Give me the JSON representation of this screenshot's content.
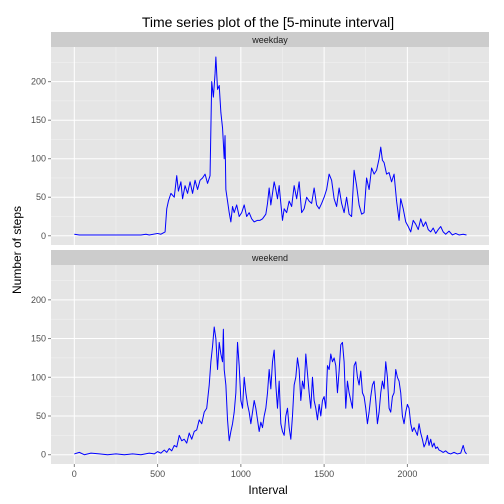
{
  "chart_data": {
    "type": "line",
    "title": "Time series plot of the [5-minute interval]",
    "xlabel": "Interval",
    "ylabel": "Number of steps",
    "xlim": [
      -140,
      2490
    ],
    "ylim": [
      -12,
      245
    ],
    "x_ticks": [
      0,
      500,
      1000,
      1500,
      2000
    ],
    "y_ticks": [
      0,
      50,
      100,
      150,
      200
    ],
    "grid": true,
    "line_color": "#0000ff",
    "panel_background": "#e5e5e5",
    "strip_background": "#cccccc",
    "panels": [
      {
        "label": "weekday",
        "points": [
          [
            0,
            2
          ],
          [
            30,
            1
          ],
          [
            60,
            1
          ],
          [
            100,
            1
          ],
          [
            140,
            1
          ],
          [
            200,
            1
          ],
          [
            300,
            1
          ],
          [
            400,
            1
          ],
          [
            430,
            2
          ],
          [
            450,
            1
          ],
          [
            500,
            3
          ],
          [
            520,
            2
          ],
          [
            545,
            5
          ],
          [
            555,
            35
          ],
          [
            565,
            45
          ],
          [
            580,
            55
          ],
          [
            600,
            50
          ],
          [
            615,
            78
          ],
          [
            625,
            58
          ],
          [
            640,
            70
          ],
          [
            650,
            48
          ],
          [
            665,
            65
          ],
          [
            680,
            55
          ],
          [
            695,
            70
          ],
          [
            710,
            55
          ],
          [
            725,
            72
          ],
          [
            740,
            60
          ],
          [
            755,
            72
          ],
          [
            770,
            75
          ],
          [
            785,
            80
          ],
          [
            800,
            68
          ],
          [
            815,
            78
          ],
          [
            825,
            200
          ],
          [
            835,
            180
          ],
          [
            845,
            210
          ],
          [
            850,
            232
          ],
          [
            860,
            190
          ],
          [
            870,
            195
          ],
          [
            880,
            160
          ],
          [
            890,
            140
          ],
          [
            900,
            100
          ],
          [
            905,
            130
          ],
          [
            910,
            60
          ],
          [
            920,
            45
          ],
          [
            930,
            30
          ],
          [
            940,
            18
          ],
          [
            950,
            38
          ],
          [
            960,
            30
          ],
          [
            975,
            40
          ],
          [
            990,
            25
          ],
          [
            1005,
            30
          ],
          [
            1020,
            40
          ],
          [
            1035,
            25
          ],
          [
            1050,
            30
          ],
          [
            1065,
            22
          ],
          [
            1080,
            18
          ],
          [
            1100,
            20
          ],
          [
            1115,
            20
          ],
          [
            1130,
            22
          ],
          [
            1150,
            28
          ],
          [
            1160,
            42
          ],
          [
            1170,
            62
          ],
          [
            1180,
            40
          ],
          [
            1190,
            55
          ],
          [
            1200,
            70
          ],
          [
            1210,
            60
          ],
          [
            1220,
            48
          ],
          [
            1230,
            65
          ],
          [
            1240,
            42
          ],
          [
            1250,
            20
          ],
          [
            1260,
            35
          ],
          [
            1275,
            30
          ],
          [
            1290,
            45
          ],
          [
            1305,
            38
          ],
          [
            1320,
            65
          ],
          [
            1335,
            48
          ],
          [
            1350,
            70
          ],
          [
            1365,
            30
          ],
          [
            1380,
            35
          ],
          [
            1395,
            50
          ],
          [
            1410,
            45
          ],
          [
            1425,
            42
          ],
          [
            1440,
            62
          ],
          [
            1455,
            40
          ],
          [
            1470,
            35
          ],
          [
            1485,
            42
          ],
          [
            1500,
            50
          ],
          [
            1515,
            60
          ],
          [
            1530,
            80
          ],
          [
            1545,
            72
          ],
          [
            1560,
            48
          ],
          [
            1575,
            38
          ],
          [
            1590,
            62
          ],
          [
            1605,
            42
          ],
          [
            1620,
            30
          ],
          [
            1635,
            50
          ],
          [
            1650,
            28
          ],
          [
            1665,
            25
          ],
          [
            1680,
            85
          ],
          [
            1695,
            65
          ],
          [
            1710,
            40
          ],
          [
            1725,
            28
          ],
          [
            1740,
            30
          ],
          [
            1755,
            75
          ],
          [
            1770,
            60
          ],
          [
            1785,
            88
          ],
          [
            1800,
            80
          ],
          [
            1815,
            85
          ],
          [
            1830,
            100
          ],
          [
            1840,
            115
          ],
          [
            1850,
            98
          ],
          [
            1860,
            95
          ],
          [
            1875,
            80
          ],
          [
            1890,
            82
          ],
          [
            1905,
            70
          ],
          [
            1920,
            80
          ],
          [
            1935,
            45
          ],
          [
            1950,
            20
          ],
          [
            1960,
            48
          ],
          [
            1975,
            35
          ],
          [
            1990,
            18
          ],
          [
            2005,
            12
          ],
          [
            2020,
            5
          ],
          [
            2035,
            20
          ],
          [
            2050,
            15
          ],
          [
            2065,
            8
          ],
          [
            2080,
            22
          ],
          [
            2095,
            12
          ],
          [
            2110,
            18
          ],
          [
            2125,
            8
          ],
          [
            2140,
            5
          ],
          [
            2155,
            10
          ],
          [
            2170,
            3
          ],
          [
            2185,
            8
          ],
          [
            2200,
            12
          ],
          [
            2215,
            5
          ],
          [
            2230,
            2
          ],
          [
            2250,
            6
          ],
          [
            2270,
            1
          ],
          [
            2290,
            3
          ],
          [
            2310,
            1
          ],
          [
            2335,
            2
          ],
          [
            2355,
            1
          ]
        ]
      },
      {
        "label": "weekend",
        "points": [
          [
            0,
            1
          ],
          [
            30,
            3
          ],
          [
            60,
            0
          ],
          [
            100,
            2
          ],
          [
            150,
            1
          ],
          [
            200,
            0
          ],
          [
            250,
            1
          ],
          [
            300,
            0
          ],
          [
            350,
            1
          ],
          [
            400,
            0
          ],
          [
            450,
            2
          ],
          [
            480,
            1
          ],
          [
            500,
            4
          ],
          [
            520,
            2
          ],
          [
            540,
            6
          ],
          [
            555,
            3
          ],
          [
            570,
            8
          ],
          [
            585,
            5
          ],
          [
            600,
            12
          ],
          [
            615,
            10
          ],
          [
            630,
            25
          ],
          [
            645,
            18
          ],
          [
            660,
            20
          ],
          [
            675,
            15
          ],
          [
            690,
            28
          ],
          [
            705,
            20
          ],
          [
            720,
            30
          ],
          [
            735,
            32
          ],
          [
            750,
            45
          ],
          [
            765,
            40
          ],
          [
            780,
            55
          ],
          [
            795,
            60
          ],
          [
            810,
            90
          ],
          [
            820,
            120
          ],
          [
            830,
            140
          ],
          [
            840,
            165
          ],
          [
            850,
            150
          ],
          [
            860,
            110
          ],
          [
            870,
            145
          ],
          [
            880,
            130
          ],
          [
            890,
            120
          ],
          [
            895,
            162
          ],
          [
            900,
            110
          ],
          [
            910,
            90
          ],
          [
            920,
            45
          ],
          [
            930,
            18
          ],
          [
            940,
            30
          ],
          [
            950,
            40
          ],
          [
            960,
            55
          ],
          [
            970,
            80
          ],
          [
            980,
            145
          ],
          [
            990,
            115
          ],
          [
            1000,
            70
          ],
          [
            1010,
            60
          ],
          [
            1020,
            100
          ],
          [
            1030,
            80
          ],
          [
            1040,
            65
          ],
          [
            1050,
            55
          ],
          [
            1060,
            40
          ],
          [
            1070,
            55
          ],
          [
            1080,
            70
          ],
          [
            1090,
            60
          ],
          [
            1100,
            45
          ],
          [
            1110,
            30
          ],
          [
            1120,
            42
          ],
          [
            1130,
            35
          ],
          [
            1140,
            50
          ],
          [
            1150,
            60
          ],
          [
            1160,
            80
          ],
          [
            1170,
            110
          ],
          [
            1180,
            85
          ],
          [
            1190,
            120
          ],
          [
            1200,
            135
          ],
          [
            1210,
            90
          ],
          [
            1220,
            60
          ],
          [
            1230,
            95
          ],
          [
            1240,
            40
          ],
          [
            1250,
            30
          ],
          [
            1260,
            25
          ],
          [
            1270,
            50
          ],
          [
            1280,
            60
          ],
          [
            1290,
            35
          ],
          [
            1300,
            20
          ],
          [
            1310,
            50
          ],
          [
            1320,
            90
          ],
          [
            1330,
            100
          ],
          [
            1340,
            125
          ],
          [
            1350,
            110
          ],
          [
            1360,
            70
          ],
          [
            1370,
            95
          ],
          [
            1380,
            85
          ],
          [
            1390,
            130
          ],
          [
            1400,
            105
          ],
          [
            1410,
            80
          ],
          [
            1420,
            60
          ],
          [
            1430,
            100
          ],
          [
            1440,
            70
          ],
          [
            1450,
            60
          ],
          [
            1460,
            45
          ],
          [
            1470,
            65
          ],
          [
            1480,
            50
          ],
          [
            1490,
            70
          ],
          [
            1500,
            75
          ],
          [
            1510,
            60
          ],
          [
            1520,
            115
          ],
          [
            1530,
            110
          ],
          [
            1540,
            130
          ],
          [
            1550,
            120
          ],
          [
            1560,
            125
          ],
          [
            1570,
            115
          ],
          [
            1580,
            80
          ],
          [
            1590,
            108
          ],
          [
            1600,
            142
          ],
          [
            1610,
            145
          ],
          [
            1620,
            120
          ],
          [
            1630,
            60
          ],
          [
            1640,
            95
          ],
          [
            1650,
            80
          ],
          [
            1660,
            70
          ],
          [
            1670,
            60
          ],
          [
            1680,
            115
          ],
          [
            1690,
            120
          ],
          [
            1700,
            100
          ],
          [
            1710,
            90
          ],
          [
            1720,
            108
          ],
          [
            1730,
            80
          ],
          [
            1740,
            75
          ],
          [
            1750,
            60
          ],
          [
            1760,
            40
          ],
          [
            1770,
            55
          ],
          [
            1780,
            75
          ],
          [
            1790,
            90
          ],
          [
            1800,
            95
          ],
          [
            1810,
            70
          ],
          [
            1820,
            40
          ],
          [
            1830,
            55
          ],
          [
            1840,
            80
          ],
          [
            1850,
            95
          ],
          [
            1860,
            85
          ],
          [
            1870,
            120
          ],
          [
            1880,
            100
          ],
          [
            1890,
            60
          ],
          [
            1900,
            55
          ],
          [
            1910,
            75
          ],
          [
            1920,
            80
          ],
          [
            1930,
            110
          ],
          [
            1940,
            100
          ],
          [
            1950,
            95
          ],
          [
            1960,
            80
          ],
          [
            1970,
            50
          ],
          [
            1980,
            40
          ],
          [
            1990,
            55
          ],
          [
            2000,
            65
          ],
          [
            2010,
            60
          ],
          [
            2020,
            40
          ],
          [
            2030,
            30
          ],
          [
            2040,
            35
          ],
          [
            2050,
            30
          ],
          [
            2060,
            25
          ],
          [
            2070,
            40
          ],
          [
            2080,
            28
          ],
          [
            2090,
            20
          ],
          [
            2100,
            10
          ],
          [
            2110,
            15
          ],
          [
            2120,
            25
          ],
          [
            2130,
            12
          ],
          [
            2140,
            20
          ],
          [
            2150,
            10
          ],
          [
            2160,
            15
          ],
          [
            2170,
            8
          ],
          [
            2180,
            10
          ],
          [
            2190,
            6
          ],
          [
            2200,
            5
          ],
          [
            2215,
            3
          ],
          [
            2230,
            5
          ],
          [
            2245,
            2
          ],
          [
            2260,
            1
          ],
          [
            2280,
            3
          ],
          [
            2300,
            1
          ],
          [
            2320,
            2
          ],
          [
            2335,
            12
          ],
          [
            2345,
            4
          ],
          [
            2355,
            1
          ]
        ]
      }
    ]
  }
}
